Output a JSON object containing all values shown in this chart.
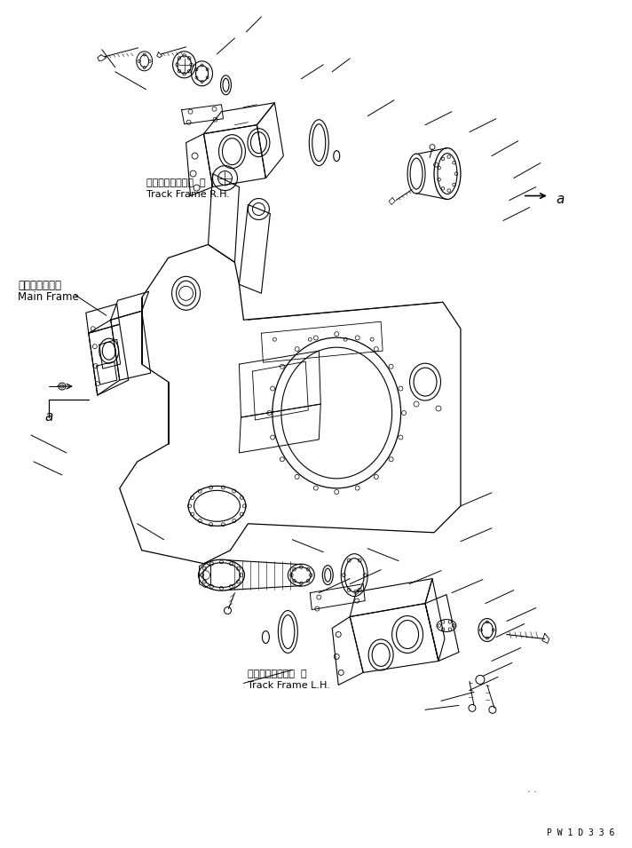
{
  "bg_color": "#ffffff",
  "line_color": "#000000",
  "fig_width": 7.12,
  "fig_height": 9.55,
  "dpi": 100,
  "label_track_frame_rh_jp": "トラックフレーム  右",
  "label_track_frame_rh_en": "Track Frame R.H.",
  "label_main_frame_jp": "メインフレーム",
  "label_main_frame_en": "Main Frame",
  "label_track_frame_lh_jp": "トラックフレーム  左",
  "label_track_frame_lh_en": "Track Frame L.H.",
  "watermark": "P W 1 D 3 3 6"
}
